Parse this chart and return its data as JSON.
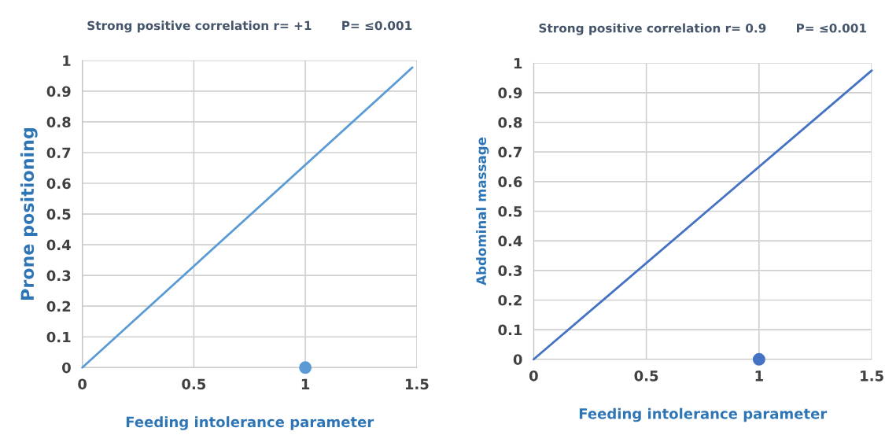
{
  "chart_data": [
    {
      "type": "line",
      "title": "Strong positive correlation r= +1       P= ≤0.001",
      "xlabel": "Feeding intolerance parameter",
      "ylabel": "Prone positioning",
      "series": [
        {
          "color": "#5b9bd5",
          "x": [
            0,
            1.48
          ],
          "values": [
            0,
            0.977
          ],
          "marker": "none"
        },
        {
          "type": "scatter",
          "color": "#5b9bd5",
          "x": [
            1
          ],
          "values": [
            0
          ],
          "marker": "circle"
        }
      ],
      "xlim": [
        0,
        1.5
      ],
      "xticks": [
        0,
        0.5,
        1,
        1.5
      ],
      "ylim": [
        0,
        1
      ],
      "yticks": [
        0,
        0.1,
        0.2,
        0.3,
        0.4,
        0.5,
        0.6,
        0.7,
        0.8,
        0.9,
        1
      ],
      "grid": true
    },
    {
      "type": "line",
      "title": "Strong positive correlation r= 0.9       P= ≤0.001",
      "xlabel": "Feeding intolerance parameter",
      "ylabel": "Abdominal massage",
      "series": [
        {
          "color": "#4472c4",
          "x": [
            0,
            1.5
          ],
          "values": [
            0,
            0.975
          ],
          "marker": "none"
        },
        {
          "type": "scatter",
          "color": "#4472c4",
          "x": [
            1
          ],
          "values": [
            0
          ],
          "marker": "circle"
        }
      ],
      "xlim": [
        0,
        1.5
      ],
      "xticks": [
        0,
        0.5,
        1,
        1.5
      ],
      "ylim": [
        0,
        1
      ],
      "yticks": [
        0,
        0.1,
        0.2,
        0.3,
        0.4,
        0.5,
        0.6,
        0.7,
        0.8,
        0.9,
        1
      ],
      "grid": true
    }
  ]
}
